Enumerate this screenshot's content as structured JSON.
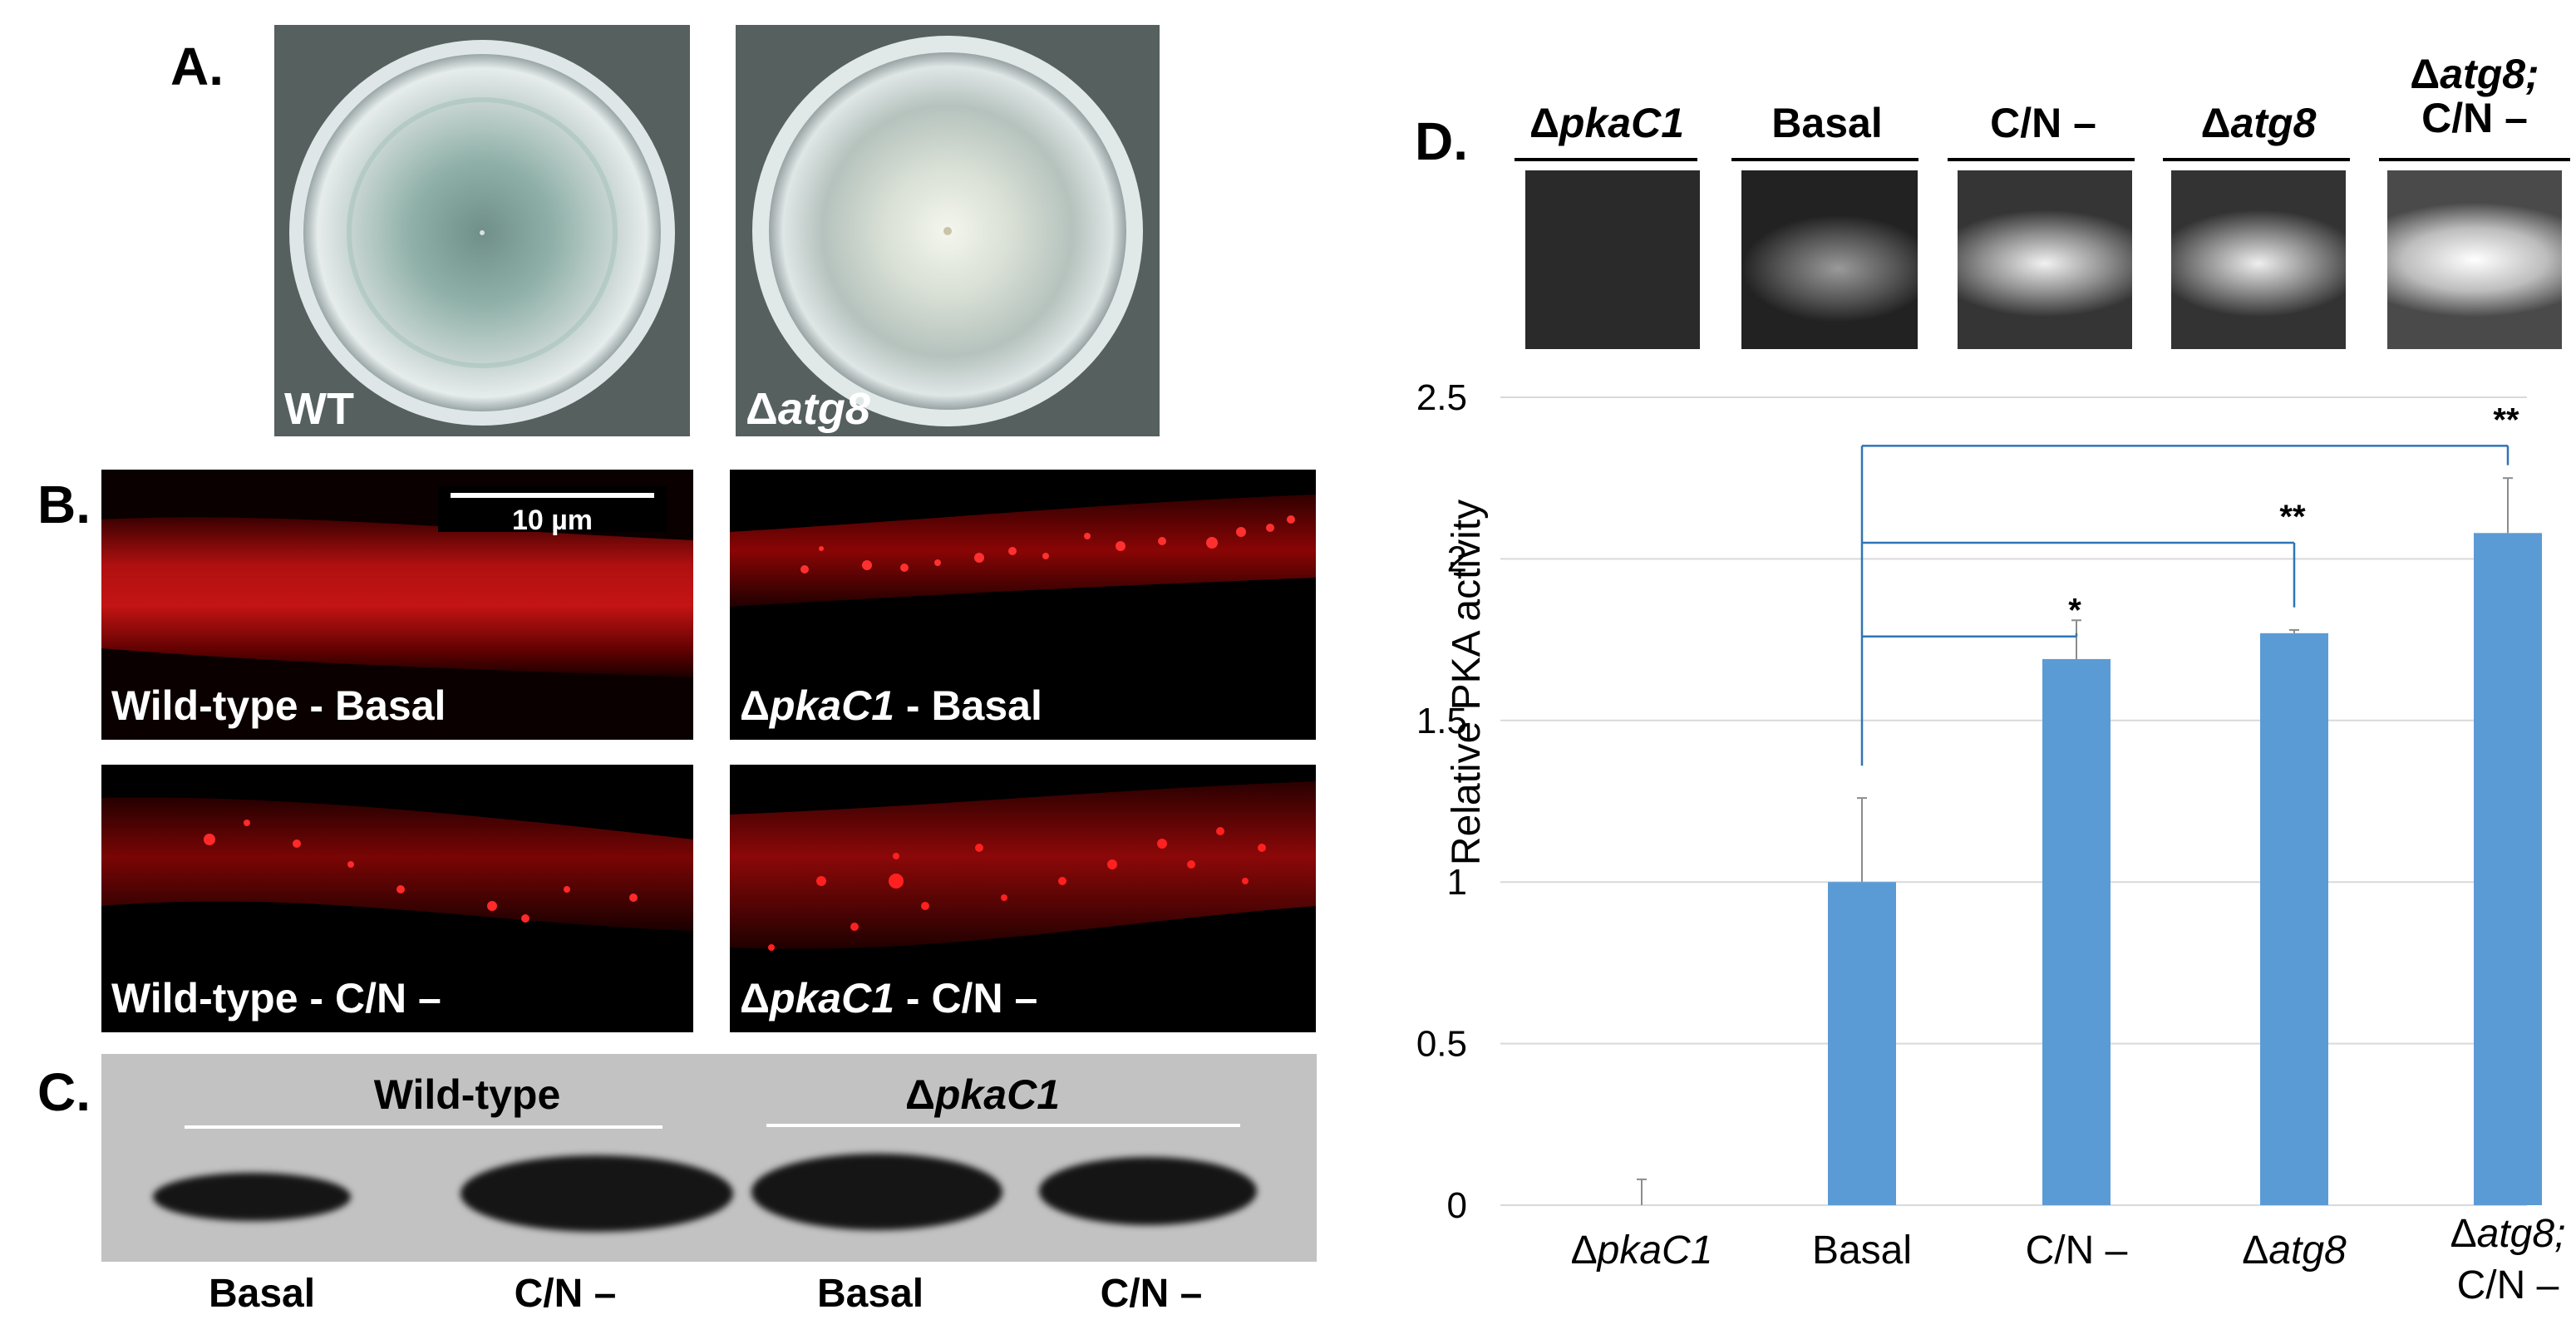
{
  "panel_A": {
    "letter": "A.",
    "plates": [
      {
        "label_prefix": "",
        "label_ital": "",
        "label_plain": "WT"
      },
      {
        "label_prefix": "Δ",
        "label_ital": "atg8",
        "label_plain": ""
      }
    ]
  },
  "panel_B": {
    "letter": "B.",
    "scale_bar": "10 µm",
    "images": [
      {
        "prefix": "",
        "ital": "",
        "text": "Wild-type - Basal"
      },
      {
        "prefix": "Δ",
        "ital": "pkaC1",
        "text": " - Basal"
      },
      {
        "prefix": "",
        "ital": "",
        "text": "Wild-type - C/N –"
      },
      {
        "prefix": "Δ",
        "ital": "pkaC1",
        "text": " - C/N –"
      }
    ]
  },
  "panel_C": {
    "letter": "C.",
    "groups": [
      {
        "prefix": "",
        "ital": "",
        "text": "Wild-type"
      },
      {
        "prefix": "Δ",
        "ital": "pkaC1",
        "text": ""
      }
    ],
    "lanes": [
      "Basal",
      "C/N –",
      "Basal",
      "C/N –"
    ]
  },
  "panel_D": {
    "letter": "D.",
    "strip_labels": [
      {
        "prefix": "Δ",
        "ital": "pkaC1",
        "line2": ""
      },
      {
        "prefix": "",
        "ital": "",
        "plain": "Basal",
        "line2": ""
      },
      {
        "prefix": "",
        "ital": "",
        "plain": "C/N –",
        "line2": ""
      },
      {
        "prefix": "Δ",
        "ital": "atg8",
        "line2": ""
      },
      {
        "prefix": "Δ",
        "ital": "atg8;",
        "line2": "C/N –"
      }
    ]
  },
  "chart_data": {
    "type": "bar",
    "categories": [
      "ΔpkaC1",
      "Basal",
      "C/N –",
      "Δatg8",
      "Δatg8; C/N –"
    ],
    "category_display": [
      {
        "prefix": "Δ",
        "ital": "pkaC1",
        "plain": "",
        "line2": ""
      },
      {
        "prefix": "",
        "ital": "",
        "plain": "Basal",
        "line2": ""
      },
      {
        "prefix": "",
        "ital": "",
        "plain": "C/N –",
        "line2": ""
      },
      {
        "prefix": "Δ",
        "ital": "atg8",
        "plain": "",
        "line2": ""
      },
      {
        "prefix": "Δ",
        "ital": "atg8;",
        "plain": "",
        "line2": "C/N –"
      }
    ],
    "values": [
      0.0,
      1.0,
      1.69,
      1.77,
      2.08
    ],
    "errors": [
      0.08,
      0.26,
      0.12,
      0.01,
      0.17
    ],
    "ylabel": "Relative PKA activity",
    "ylim": [
      0,
      2.5
    ],
    "yticks": [
      0,
      0.5,
      1,
      1.5,
      2,
      2.5
    ],
    "grid": true,
    "bar_color": "#5b9bd5",
    "significance": [
      {
        "from": "Basal",
        "to": "C/N –",
        "label": "*"
      },
      {
        "from": "Basal",
        "to": "Δatg8",
        "label": "**"
      },
      {
        "from": "Basal",
        "to": "Δatg8; C/N –",
        "label": "**"
      }
    ]
  }
}
